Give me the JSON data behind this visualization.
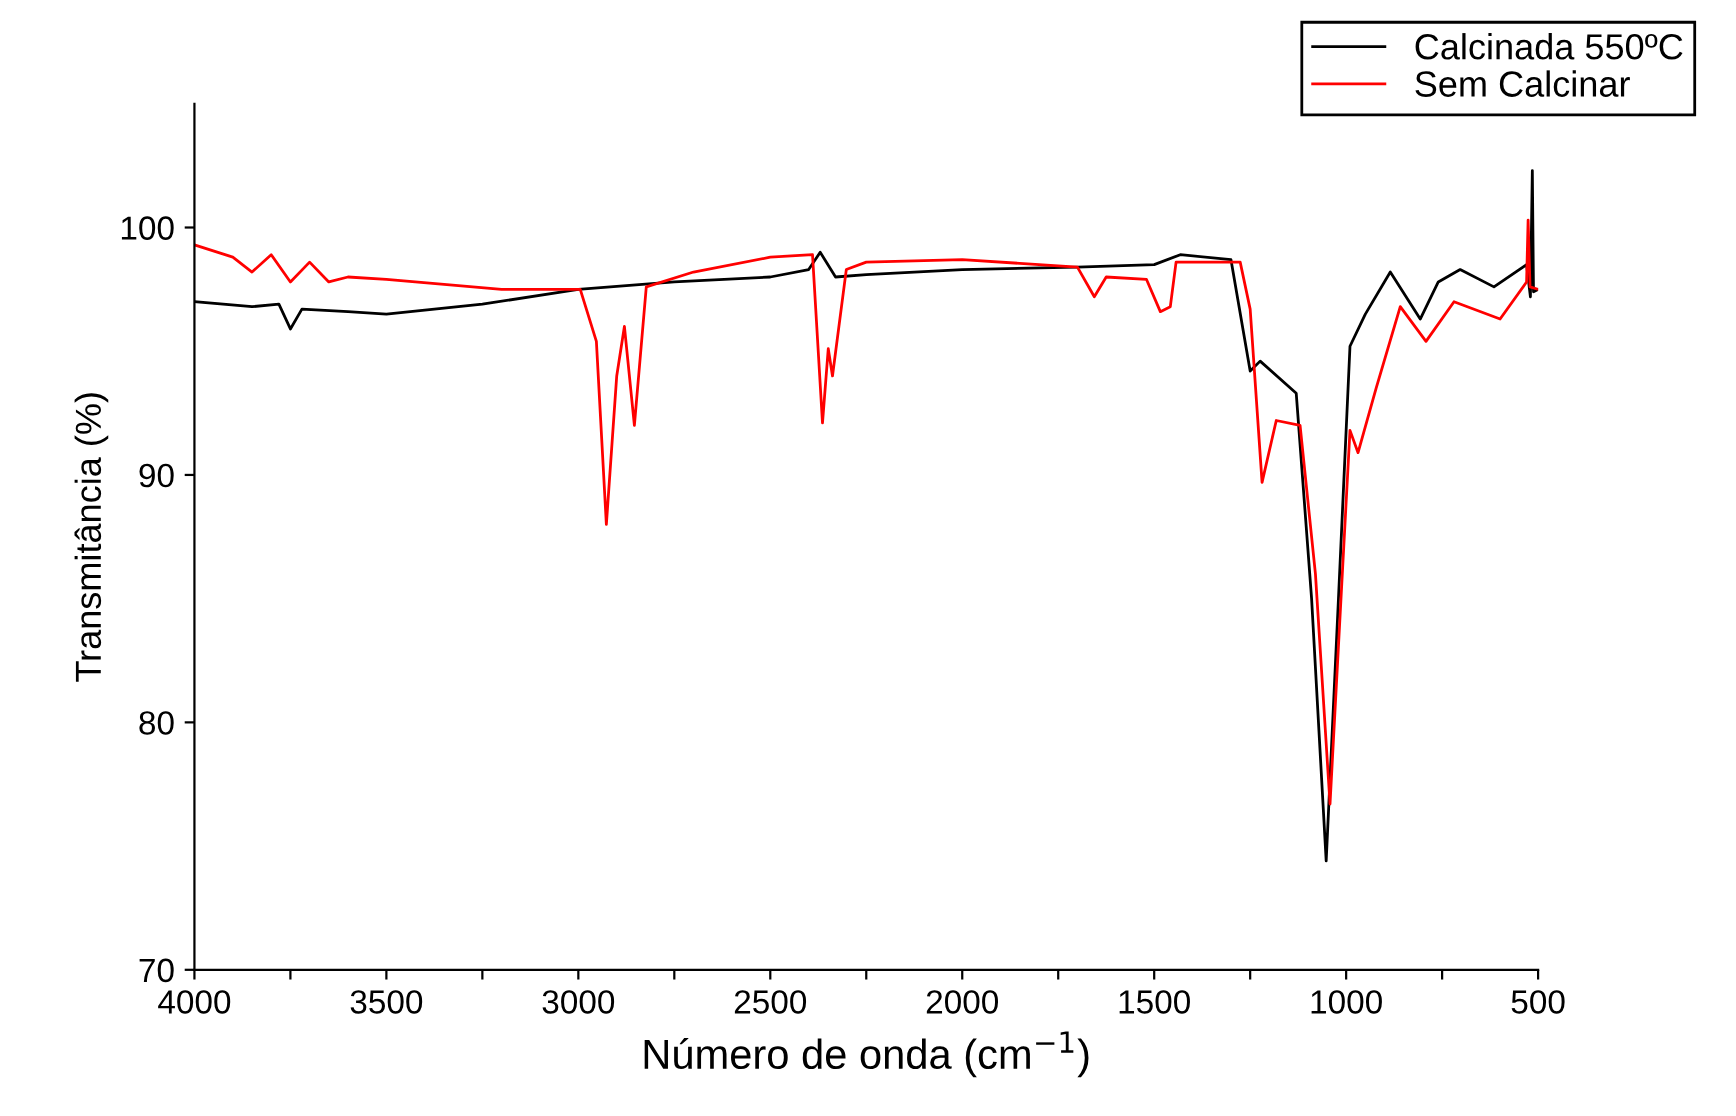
{
  "chart_data": {
    "type": "line",
    "xlabel": "Número de onda (cm$^{−1}$)",
    "ylabel": "Transmitância (%)",
    "xlim": [
      4000,
      500
    ],
    "ylim": [
      70,
      105
    ],
    "xticks": [
      4000,
      {
        "value": 3750,
        "label": null
      },
      3500,
      {
        "value": 3250,
        "label": null
      },
      3000,
      {
        "value": 2750,
        "label": null
      },
      2500,
      {
        "value": 2250,
        "label": null
      },
      2000,
      {
        "value": 1750,
        "label": null
      },
      1500,
      {
        "value": 1250,
        "label": null
      },
      1000,
      {
        "value": 750,
        "label": null
      },
      500
    ],
    "yticks": [
      70,
      80,
      90,
      100
    ],
    "grid": false,
    "legend": "top right",
    "marker": "none",
    "line_style": "solid",
    "series": [
      {
        "name": "Calcinada 550ºC",
        "color": "#000000",
        "x": [
          4000,
          3850,
          3780,
          3750,
          3720,
          3600,
          3500,
          3250,
          3000,
          2750,
          2500,
          2400,
          2370,
          2330,
          2250,
          2000,
          1700,
          1500,
          1432,
          1300,
          1250,
          1224,
          1130,
          1090,
          1052,
          1020,
          990,
          950,
          885,
          807,
          760,
          703,
          615,
          530,
          520,
          515,
          512,
          500
        ],
        "values": [
          97.0,
          96.8,
          96.9,
          95.9,
          96.7,
          96.6,
          96.5,
          96.9,
          97.5,
          97.8,
          98.0,
          98.3,
          99.0,
          98.0,
          98.1,
          98.3,
          98.4,
          98.5,
          98.9,
          98.7,
          94.2,
          94.6,
          93.3,
          85.0,
          74.4,
          85.0,
          95.2,
          96.5,
          98.2,
          96.3,
          97.8,
          98.3,
          97.6,
          98.5,
          97.2,
          102.3,
          97.4,
          97.5
        ]
      },
      {
        "name": "Sem Calcinar",
        "color": "#ff0000",
        "x": [
          4000,
          3900,
          3850,
          3800,
          3750,
          3700,
          3650,
          3600,
          3500,
          3200,
          2995,
          2953,
          2927,
          2900,
          2880,
          2854,
          2823,
          2700,
          2500,
          2390,
          2364,
          2349,
          2338,
          2302,
          2250,
          2000,
          1700,
          1656,
          1625,
          1520,
          1484,
          1458,
          1443,
          1276,
          1250,
          1219,
          1182,
          1120,
          1080,
          1042,
          1010,
          990,
          969,
          922,
          859,
          792,
          719,
          599,
          530,
          526,
          521,
          500
        ],
        "values": [
          99.3,
          98.8,
          98.2,
          98.9,
          97.8,
          98.6,
          97.8,
          98.0,
          97.9,
          97.5,
          97.5,
          95.4,
          88.0,
          94.0,
          96.0,
          92.0,
          97.6,
          98.2,
          98.8,
          98.9,
          92.1,
          95.1,
          94.0,
          98.3,
          98.6,
          98.7,
          98.4,
          97.2,
          98.0,
          97.9,
          96.6,
          96.8,
          98.6,
          98.6,
          96.7,
          89.7,
          92.2,
          92.0,
          86.0,
          76.7,
          86.0,
          91.8,
          90.9,
          93.5,
          96.8,
          95.4,
          97.0,
          96.3,
          97.8,
          100.3,
          97.6,
          97.5
        ]
      }
    ]
  }
}
